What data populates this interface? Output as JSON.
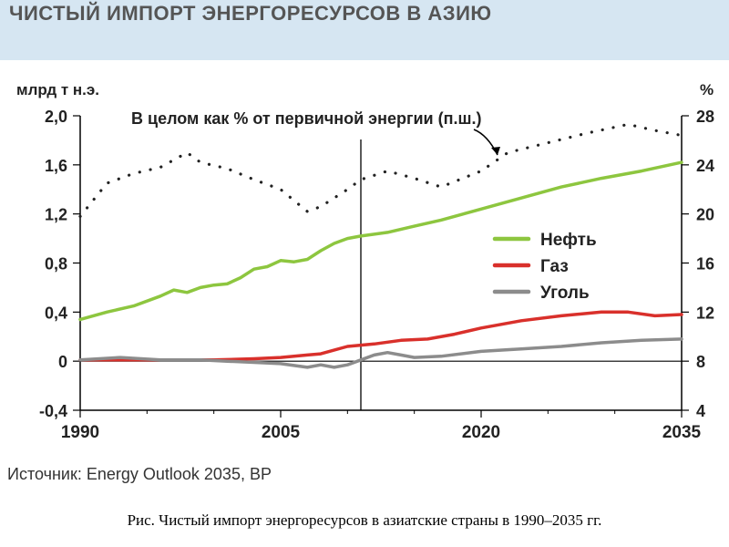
{
  "header": {
    "title": "ЧИСТЫЙ ИМПОРТ ЭНЕРГОРЕСУРСОВ В АЗИЮ",
    "bg_color": "#d6e6f2"
  },
  "chart_data": {
    "type": "line",
    "title": "",
    "ylabel_left": "млрд т н.э.",
    "ylabel_right": "%",
    "x_ticks": [
      "1990",
      "2005",
      "2020",
      "2035"
    ],
    "x_range": [
      1990,
      2035
    ],
    "ylim_left": [
      -0.4,
      2.0
    ],
    "ylim_right": [
      4,
      28
    ],
    "y_ticks_left": [
      "2,0",
      "1,6",
      "1,2",
      "0,8",
      "0,4",
      "0",
      "-0,4"
    ],
    "y_ticks_right": [
      "28",
      "24",
      "20",
      "16",
      "12",
      "8",
      "4"
    ],
    "forecast_divider_x": 2011,
    "annotation": "В целом как % от первичной энергии (п.ш.)",
    "legend": {
      "placement": "right-middle"
    },
    "series": [
      {
        "name": "Нефть",
        "color": "#8dc63f",
        "style": "solid",
        "axis": "left",
        "x": [
          1990,
          1992,
          1994,
          1996,
          1997,
          1998,
          1999,
          2000,
          2001,
          2002,
          2003,
          2004,
          2005,
          2006,
          2007,
          2008,
          2009,
          2010,
          2011,
          2013,
          2015,
          2017,
          2020,
          2023,
          2026,
          2029,
          2032,
          2035
        ],
        "values": [
          0.34,
          0.4,
          0.45,
          0.53,
          0.58,
          0.56,
          0.6,
          0.62,
          0.63,
          0.68,
          0.75,
          0.77,
          0.82,
          0.81,
          0.83,
          0.9,
          0.96,
          1.0,
          1.02,
          1.05,
          1.1,
          1.15,
          1.24,
          1.33,
          1.42,
          1.49,
          1.55,
          1.62
        ]
      },
      {
        "name": "Газ",
        "color": "#d9302b",
        "style": "solid",
        "axis": "left",
        "x": [
          1990,
          1995,
          2000,
          2003,
          2005,
          2007,
          2008,
          2010,
          2012,
          2014,
          2016,
          2018,
          2020,
          2023,
          2026,
          2029,
          2031,
          2033,
          2035
        ],
        "values": [
          0.01,
          0.01,
          0.01,
          0.02,
          0.03,
          0.05,
          0.06,
          0.12,
          0.14,
          0.17,
          0.18,
          0.22,
          0.27,
          0.33,
          0.37,
          0.4,
          0.4,
          0.37,
          0.38
        ]
      },
      {
        "name": "Уголь",
        "color": "#8c8c8c",
        "style": "solid",
        "axis": "left",
        "x": [
          1990,
          1993,
          1996,
          1999,
          2001,
          2003,
          2005,
          2007,
          2008,
          2009,
          2010,
          2011,
          2012,
          2013,
          2014,
          2015,
          2017,
          2020,
          2023,
          2026,
          2029,
          2032,
          2035
        ],
        "values": [
          0.01,
          0.03,
          0.01,
          0.01,
          0.0,
          -0.01,
          -0.02,
          -0.05,
          -0.03,
          -0.05,
          -0.03,
          0.01,
          0.05,
          0.07,
          0.05,
          0.03,
          0.04,
          0.08,
          0.1,
          0.12,
          0.15,
          0.17,
          0.18
        ]
      },
      {
        "name": "В целом как % от первичной энергии (п.ш.)",
        "color": "#222222",
        "style": "dotted",
        "axis": "right",
        "x": [
          1990,
          1992,
          1994,
          1996,
          1998,
          1999,
          2001,
          2003,
          2005,
          2007,
          2008,
          2010,
          2011,
          2013,
          2015,
          2017,
          2020,
          2022,
          2025,
          2028,
          2031,
          2033,
          2035
        ],
        "values": [
          19.8,
          22.5,
          23.3,
          23.8,
          25.0,
          24.2,
          23.7,
          22.8,
          22.0,
          20.2,
          20.6,
          22.0,
          22.8,
          23.5,
          22.9,
          22.2,
          23.5,
          25.0,
          25.8,
          26.6,
          27.3,
          26.8,
          26.4
        ]
      }
    ]
  },
  "source": "Источник: Energy Outlook 2035, BP",
  "caption": "Рис. Чистый импорт энергоресурсов в азиатские страны в 1990–2035 гг."
}
